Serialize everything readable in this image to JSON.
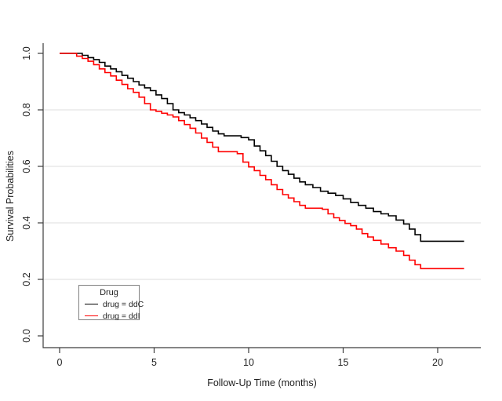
{
  "chart_data": {
    "type": "line",
    "subtype": "kaplan-meier-step",
    "title": "",
    "xlabel": "Follow-Up Time (months)",
    "ylabel": "Survival Probabilities",
    "xlim": [
      0,
      21.5
    ],
    "ylim": [
      0.0,
      1.0
    ],
    "xticks": [
      0,
      5,
      10,
      15,
      20
    ],
    "xtick_labels": [
      "0",
      "5",
      "10",
      "15",
      "20"
    ],
    "yticks": [
      0.0,
      0.2,
      0.4,
      0.6,
      0.8,
      1.0
    ],
    "ytick_labels": [
      "0.0",
      "0.2",
      "0.4",
      "0.6",
      "0.8",
      "1.0"
    ],
    "grid": "horizontal gridlines only",
    "gridlines_y": [
      0.2,
      0.4,
      0.6,
      0.8
    ],
    "legend": {
      "title": "Drug",
      "position": "bottom-left",
      "entries": [
        {
          "label": "drug = ddC",
          "color": "#000000"
        },
        {
          "label": "drug = ddI",
          "color": "#ff0000"
        }
      ]
    },
    "series": [
      {
        "name": "drug = ddC",
        "color": "#000000",
        "step_points": [
          [
            0,
            1
          ],
          [
            1.2,
            0.993
          ],
          [
            1.5,
            0.985
          ],
          [
            1.8,
            0.978
          ],
          [
            2.1,
            0.968
          ],
          [
            2.4,
            0.955
          ],
          [
            2.7,
            0.945
          ],
          [
            3,
            0.935
          ],
          [
            3.3,
            0.922
          ],
          [
            3.6,
            0.912
          ],
          [
            3.9,
            0.9
          ],
          [
            4.2,
            0.888
          ],
          [
            4.5,
            0.878
          ],
          [
            4.8,
            0.868
          ],
          [
            5.1,
            0.853
          ],
          [
            5.4,
            0.84
          ],
          [
            5.7,
            0.822
          ],
          [
            6,
            0.8
          ],
          [
            6.3,
            0.79
          ],
          [
            6.6,
            0.782
          ],
          [
            6.9,
            0.772
          ],
          [
            7.2,
            0.762
          ],
          [
            7.5,
            0.75
          ],
          [
            7.8,
            0.738
          ],
          [
            8.1,
            0.725
          ],
          [
            8.4,
            0.715
          ],
          [
            8.7,
            0.708
          ],
          [
            9.6,
            0.702
          ],
          [
            10,
            0.694
          ],
          [
            10.3,
            0.672
          ],
          [
            10.6,
            0.655
          ],
          [
            10.9,
            0.638
          ],
          [
            11.2,
            0.618
          ],
          [
            11.5,
            0.6
          ],
          [
            11.8,
            0.585
          ],
          [
            12.1,
            0.572
          ],
          [
            12.4,
            0.558
          ],
          [
            12.7,
            0.545
          ],
          [
            13,
            0.535
          ],
          [
            13.4,
            0.525
          ],
          [
            13.8,
            0.512
          ],
          [
            14.2,
            0.505
          ],
          [
            14.6,
            0.497
          ],
          [
            15,
            0.485
          ],
          [
            15.4,
            0.472
          ],
          [
            15.8,
            0.462
          ],
          [
            16.2,
            0.452
          ],
          [
            16.6,
            0.44
          ],
          [
            17,
            0.432
          ],
          [
            17.4,
            0.425
          ],
          [
            17.8,
            0.41
          ],
          [
            18.2,
            0.396
          ],
          [
            18.5,
            0.378
          ],
          [
            18.8,
            0.358
          ],
          [
            19.1,
            0.335
          ],
          [
            21.4,
            0.335
          ]
        ]
      },
      {
        "name": "drug = ddI",
        "color": "#ff0000",
        "step_points": [
          [
            0,
            1
          ],
          [
            0.9,
            0.99
          ],
          [
            1.2,
            0.982
          ],
          [
            1.5,
            0.972
          ],
          [
            1.8,
            0.96
          ],
          [
            2.1,
            0.945
          ],
          [
            2.4,
            0.932
          ],
          [
            2.7,
            0.92
          ],
          [
            3,
            0.905
          ],
          [
            3.3,
            0.89
          ],
          [
            3.6,
            0.875
          ],
          [
            3.9,
            0.862
          ],
          [
            4.2,
            0.845
          ],
          [
            4.5,
            0.822
          ],
          [
            4.8,
            0.8
          ],
          [
            5.1,
            0.795
          ],
          [
            5.4,
            0.788
          ],
          [
            5.7,
            0.782
          ],
          [
            6,
            0.775
          ],
          [
            6.3,
            0.762
          ],
          [
            6.6,
            0.748
          ],
          [
            6.9,
            0.735
          ],
          [
            7.2,
            0.718
          ],
          [
            7.5,
            0.7
          ],
          [
            7.8,
            0.685
          ],
          [
            8.1,
            0.668
          ],
          [
            8.4,
            0.652
          ],
          [
            9.4,
            0.645
          ],
          [
            9.7,
            0.615
          ],
          [
            10,
            0.598
          ],
          [
            10.3,
            0.585
          ],
          [
            10.6,
            0.568
          ],
          [
            10.9,
            0.553
          ],
          [
            11.2,
            0.535
          ],
          [
            11.5,
            0.518
          ],
          [
            11.8,
            0.5
          ],
          [
            12.1,
            0.488
          ],
          [
            12.4,
            0.475
          ],
          [
            12.7,
            0.462
          ],
          [
            13,
            0.452
          ],
          [
            13.9,
            0.448
          ],
          [
            14.2,
            0.432
          ],
          [
            14.5,
            0.418
          ],
          [
            14.8,
            0.408
          ],
          [
            15.1,
            0.398
          ],
          [
            15.4,
            0.39
          ],
          [
            15.7,
            0.378
          ],
          [
            16,
            0.362
          ],
          [
            16.3,
            0.35
          ],
          [
            16.6,
            0.338
          ],
          [
            17,
            0.325
          ],
          [
            17.4,
            0.312
          ],
          [
            17.8,
            0.3
          ],
          [
            18.2,
            0.285
          ],
          [
            18.5,
            0.268
          ],
          [
            18.8,
            0.252
          ],
          [
            19.1,
            0.238
          ],
          [
            21.4,
            0.238
          ]
        ]
      }
    ]
  },
  "colors": {
    "background": "#ffffff",
    "gridline": "#dcdcdc",
    "axis": "#3c3c3c",
    "tick_text": "#1f1f1f",
    "legend_border": "#808080",
    "series_ddC": "#000000",
    "series_ddI": "#ff0000"
  }
}
